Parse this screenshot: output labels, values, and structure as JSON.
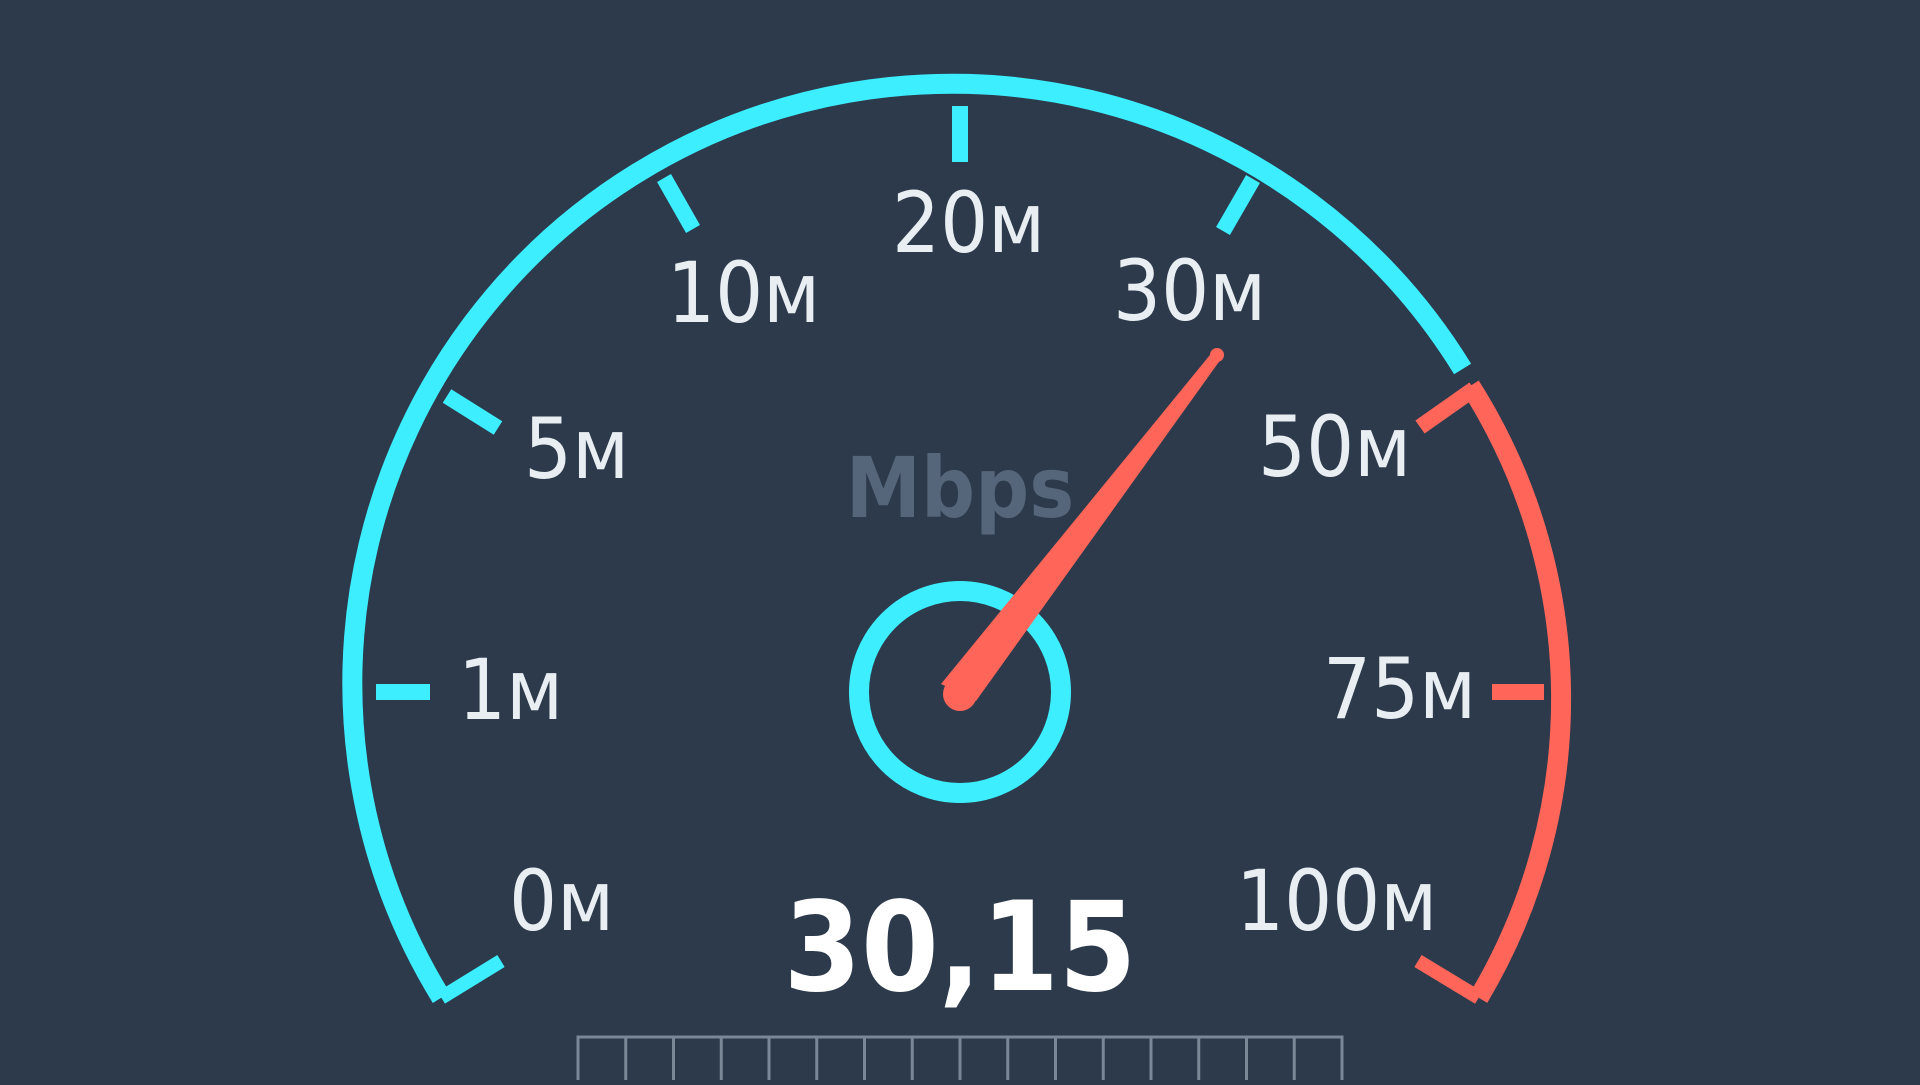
{
  "gauge": {
    "unit": "Mbps",
    "reading": "30,15",
    "value": 30.15,
    "scale_labels": [
      "0м",
      "1м",
      "5м",
      "10м",
      "20м",
      "30м",
      "50м",
      "75м",
      "100м"
    ],
    "scale_values": [
      0,
      1,
      5,
      10,
      20,
      30,
      50,
      75,
      100
    ],
    "colors": {
      "background": "#2c3a4b",
      "low_range": "#3ceeff",
      "high_range": "#ff6659",
      "needle": "#ff6659",
      "hub_ring": "#3ceeff",
      "unit_text": "#55667a",
      "label_text": "#e9eef2",
      "reading_text": "#ffffff"
    }
  }
}
